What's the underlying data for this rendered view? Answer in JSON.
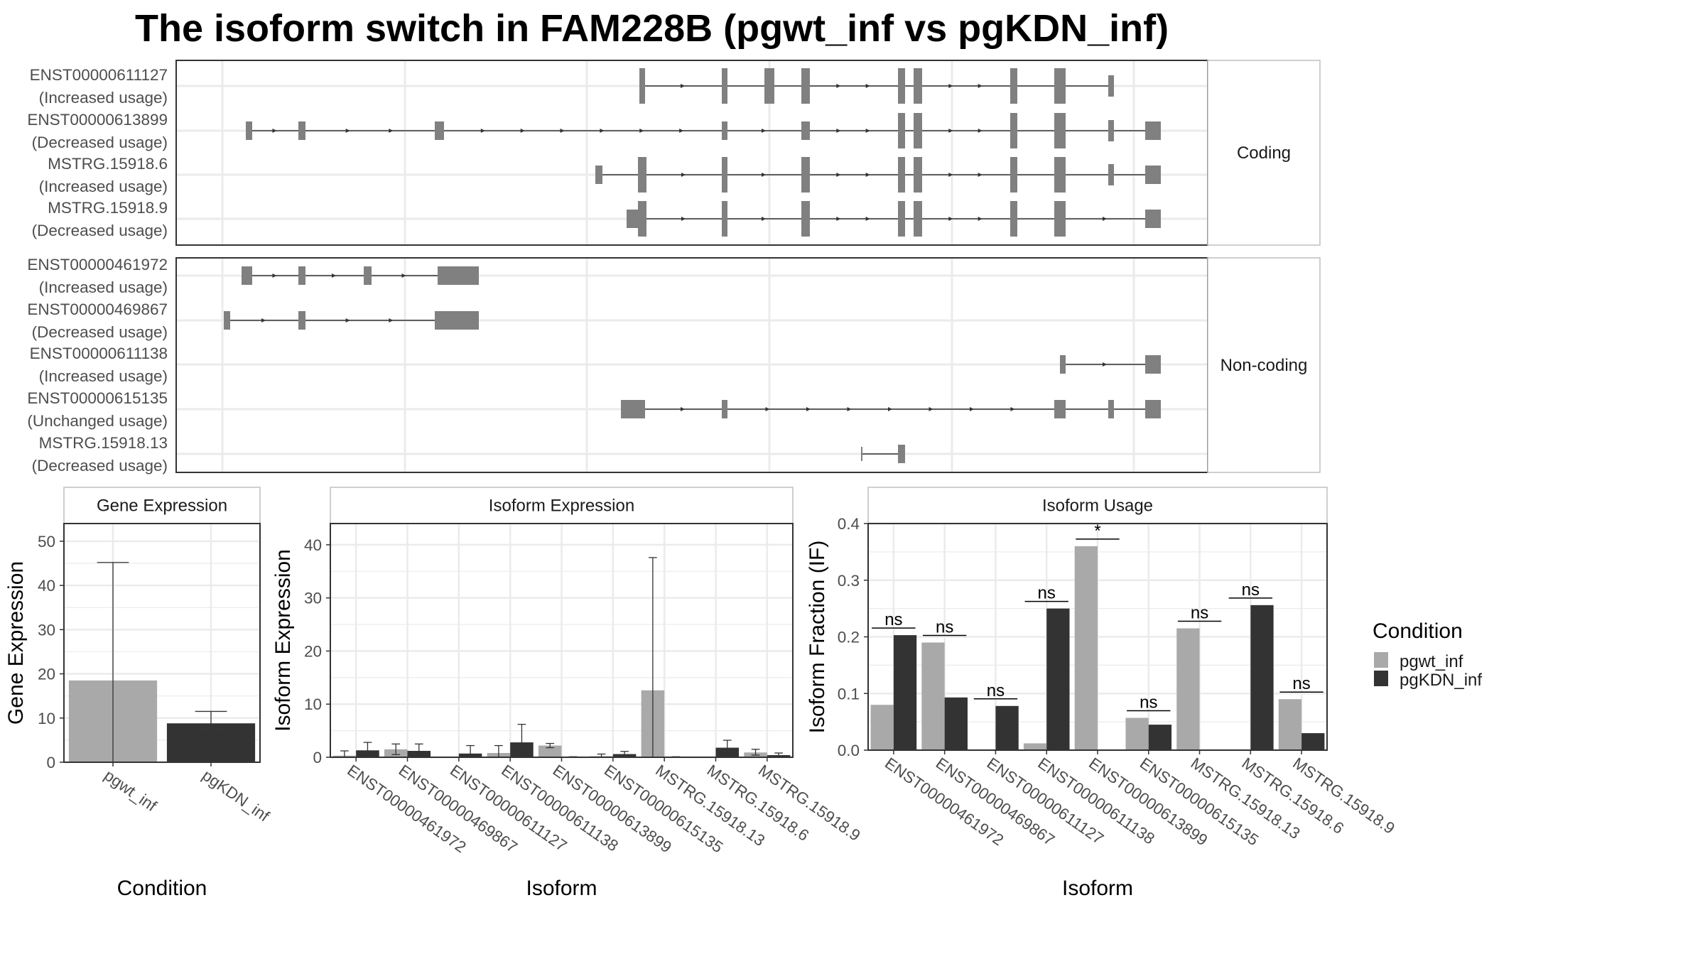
{
  "title": "The isoform switch in FAM228B (pgwt_inf vs pgKDN_inf)",
  "colors": {
    "pgwt_inf": "#a9a9a9",
    "pgKDN_inf": "#333333",
    "exon": "#808080",
    "panel_border": "#333333",
    "strip_border": "#bfbfbf",
    "grid": "#ebebeb"
  },
  "legend": {
    "title": "Condition",
    "items": [
      {
        "label": "pgwt_inf",
        "color": "#a9a9a9"
      },
      {
        "label": "pgKDN_inf",
        "color": "#333333"
      }
    ]
  },
  "chart_data": [
    {
      "type": "gene-structure",
      "facets": [
        {
          "strip": "Coding",
          "transcripts": [
            {
              "id": "ENST00000611127",
              "usage": "(Increased usage)"
            },
            {
              "id": "ENST00000613899",
              "usage": "(Decreased usage)"
            },
            {
              "id": "MSTRG.15918.6",
              "usage": "(Increased usage)"
            },
            {
              "id": "MSTRG.15918.9",
              "usage": "(Decreased usage)"
            }
          ]
        },
        {
          "strip": "Non-coding",
          "transcripts": [
            {
              "id": "ENST00000461972",
              "usage": "(Increased usage)"
            },
            {
              "id": "ENST00000469867",
              "usage": "(Decreased usage)"
            },
            {
              "id": "ENST00000611138",
              "usage": "(Increased usage)"
            },
            {
              "id": "ENST00000615135",
              "usage": "(Unchanged usage)"
            },
            {
              "id": "MSTRG.15918.13",
              "usage": "(Decreased usage)"
            }
          ]
        }
      ]
    },
    {
      "type": "bar",
      "strip": "Gene Expression",
      "xlabel": "Condition",
      "ylabel": "Gene Expression",
      "ylim": [
        0,
        54
      ],
      "yticks": [
        "0",
        "10",
        "20",
        "30",
        "40",
        "50"
      ],
      "categories": [
        "pgwt_inf",
        "pgKDN_inf"
      ],
      "values": [
        18.5,
        8.8
      ],
      "error_low": [
        0,
        6.2
      ],
      "error_high": [
        45.2,
        11.5
      ]
    },
    {
      "type": "bar",
      "strip": "Isoform Expression",
      "xlabel": "Isoform",
      "ylabel": "Isoform Expression",
      "ylim": [
        0,
        44
      ],
      "yticks": [
        "0",
        "10",
        "20",
        "30",
        "40"
      ],
      "categories": [
        "ENST00000461972",
        "ENST00000469867",
        "ENST00000611127",
        "ENST00000611138",
        "ENST00000613899",
        "ENST00000615135",
        "MSTRG.15918.13",
        "MSTRG.15918.6",
        "MSTRG.15918.9"
      ],
      "series": [
        {
          "name": "pgwt_inf",
          "values": [
            0.3,
            1.5,
            0,
            0.8,
            2.2,
            0.2,
            12.6,
            0,
            0.9
          ],
          "error_low": [
            0,
            0.5,
            0,
            0,
            1.8,
            0,
            0,
            0,
            0.4
          ],
          "error_high": [
            1.2,
            2.5,
            0,
            2.2,
            2.6,
            0.6,
            37.6,
            0,
            1.5
          ]
        },
        {
          "name": "pgKDN_inf",
          "values": [
            1.3,
            1.2,
            0.7,
            2.8,
            0.1,
            0.6,
            0.1,
            1.8,
            0.4
          ],
          "error_low": [
            0.3,
            0,
            0,
            0,
            0,
            0.2,
            0,
            0.6,
            0
          ],
          "error_high": [
            2.8,
            2.5,
            2.2,
            6.2,
            0.1,
            1.1,
            0.1,
            3.2,
            0.8
          ]
        }
      ]
    },
    {
      "type": "bar",
      "strip": "Isoform Usage",
      "xlabel": "Isoform",
      "ylabel": "Isoform Fraction (IF)",
      "ylim": [
        0,
        0.4
      ],
      "yticks": [
        "0.0",
        "0.1",
        "0.2",
        "0.3",
        "0.4"
      ],
      "categories": [
        "ENST00000461972",
        "ENST00000469867",
        "ENST00000611127",
        "ENST00000611138",
        "ENST00000613899",
        "ENST00000615135",
        "MSTRG.15918.13",
        "MSTRG.15918.6",
        "MSTRG.15918.9"
      ],
      "series": [
        {
          "name": "pgwt_inf",
          "values": [
            0.08,
            0.19,
            0,
            0.012,
            0.36,
            0.057,
            0.215,
            0,
            0.09
          ]
        },
        {
          "name": "pgKDN_inf",
          "values": [
            0.203,
            0.093,
            0.078,
            0.25,
            0,
            0.045,
            0,
            0.256,
            0.03
          ]
        }
      ],
      "significance": [
        "ns",
        "ns",
        "ns",
        "ns",
        "*",
        "ns",
        "ns",
        "ns",
        "ns"
      ]
    }
  ]
}
